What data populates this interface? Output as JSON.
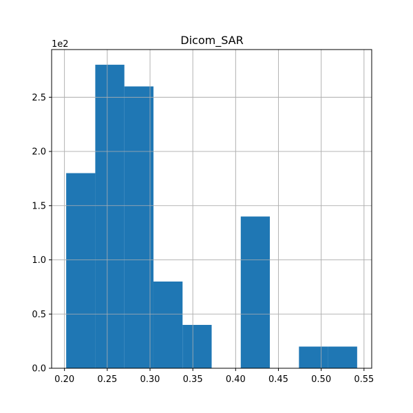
{
  "chart_data": {
    "type": "bar",
    "title": "Dicom_SAR",
    "xlabel": "",
    "ylabel": "",
    "y_offset_text": "1e2",
    "bins": [
      {
        "x0": 0.202,
        "x1": 0.236,
        "value": 1.8
      },
      {
        "x0": 0.236,
        "x1": 0.27,
        "value": 2.8
      },
      {
        "x0": 0.27,
        "x1": 0.304,
        "value": 2.6
      },
      {
        "x0": 0.304,
        "x1": 0.338,
        "value": 0.8
      },
      {
        "x0": 0.338,
        "x1": 0.372,
        "value": 0.4
      },
      {
        "x0": 0.372,
        "x1": 0.406,
        "value": 0.0
      },
      {
        "x0": 0.406,
        "x1": 0.44,
        "value": 1.4
      },
      {
        "x0": 0.44,
        "x1": 0.474,
        "value": 0.0
      },
      {
        "x0": 0.474,
        "x1": 0.508,
        "value": 0.2
      },
      {
        "x0": 0.508,
        "x1": 0.542,
        "value": 0.2
      }
    ],
    "xlim": [
      0.185,
      0.559
    ],
    "ylim": [
      0.0,
      2.94
    ],
    "x_ticks": [
      "0.20",
      "0.25",
      "0.30",
      "0.35",
      "0.40",
      "0.45",
      "0.50",
      "0.55"
    ],
    "x_tick_values": [
      0.2,
      0.25,
      0.3,
      0.35,
      0.4,
      0.45,
      0.5,
      0.55
    ],
    "y_ticks": [
      "0.0",
      "0.5",
      "1.0",
      "1.5",
      "2.0",
      "2.5"
    ],
    "y_tick_values": [
      0.0,
      0.5,
      1.0,
      1.5,
      2.0,
      2.5
    ],
    "grid": true,
    "bar_color": "#1f77b4",
    "grid_color": "#b0b0b0"
  }
}
